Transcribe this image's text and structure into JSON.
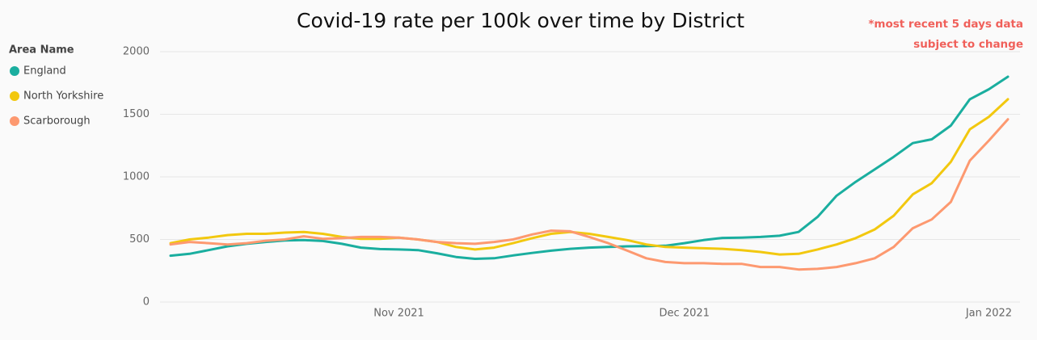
{
  "chart_data": {
    "type": "line",
    "title": "Covid-19 rate per 100k over time by District",
    "annotation": [
      "*most recent 5 days data",
      "subject to change"
    ],
    "legend_title": "Area Name",
    "legend": "left",
    "grid": true,
    "categories": [
      null,
      null,
      null,
      null,
      null,
      null,
      null,
      null,
      null,
      null,
      null,
      null,
      "Nov 2021",
      null,
      null,
      null,
      null,
      null,
      null,
      null,
      null,
      null,
      null,
      null,
      null,
      null,
      null,
      "Dec 2021",
      null,
      null,
      null,
      null,
      null,
      null,
      null,
      null,
      null,
      null,
      null,
      null,
      null,
      null,
      null,
      "Jan 2022",
      null
    ],
    "ylim": [
      0,
      2000
    ],
    "yticks": [
      0,
      500,
      1000,
      1500,
      2000
    ],
    "series": [
      {
        "name": "England",
        "color": "#1aae9f",
        "values": [
          370,
          385,
          415,
          445,
          465,
          480,
          492,
          495,
          488,
          465,
          435,
          423,
          420,
          415,
          390,
          360,
          345,
          350,
          372,
          392,
          410,
          425,
          435,
          440,
          445,
          447,
          450,
          470,
          495,
          512,
          515,
          520,
          530,
          560,
          680,
          850,
          960,
          1060,
          1160,
          1270,
          1300,
          1410,
          1620,
          1700,
          1800
        ]
      },
      {
        "name": "North Yorkshire",
        "color": "#f2c80f",
        "values": [
          470,
          500,
          515,
          535,
          545,
          545,
          555,
          560,
          545,
          520,
          505,
          505,
          515,
          500,
          480,
          440,
          420,
          435,
          470,
          510,
          545,
          560,
          545,
          520,
          495,
          460,
          440,
          435,
          430,
          425,
          415,
          400,
          380,
          385,
          420,
          460,
          510,
          580,
          690,
          860,
          950,
          1120,
          1380,
          1480,
          1620
        ]
      },
      {
        "name": "Scarborough",
        "color": "#fd9970",
        "values": [
          460,
          480,
          470,
          460,
          470,
          490,
          500,
          525,
          505,
          510,
          520,
          520,
          515,
          500,
          480,
          470,
          465,
          480,
          500,
          540,
          570,
          565,
          520,
          470,
          410,
          350,
          320,
          310,
          310,
          305,
          305,
          280,
          280,
          260,
          265,
          280,
          310,
          350,
          440,
          590,
          660,
          800,
          1130,
          1290,
          1460
        ]
      }
    ]
  }
}
